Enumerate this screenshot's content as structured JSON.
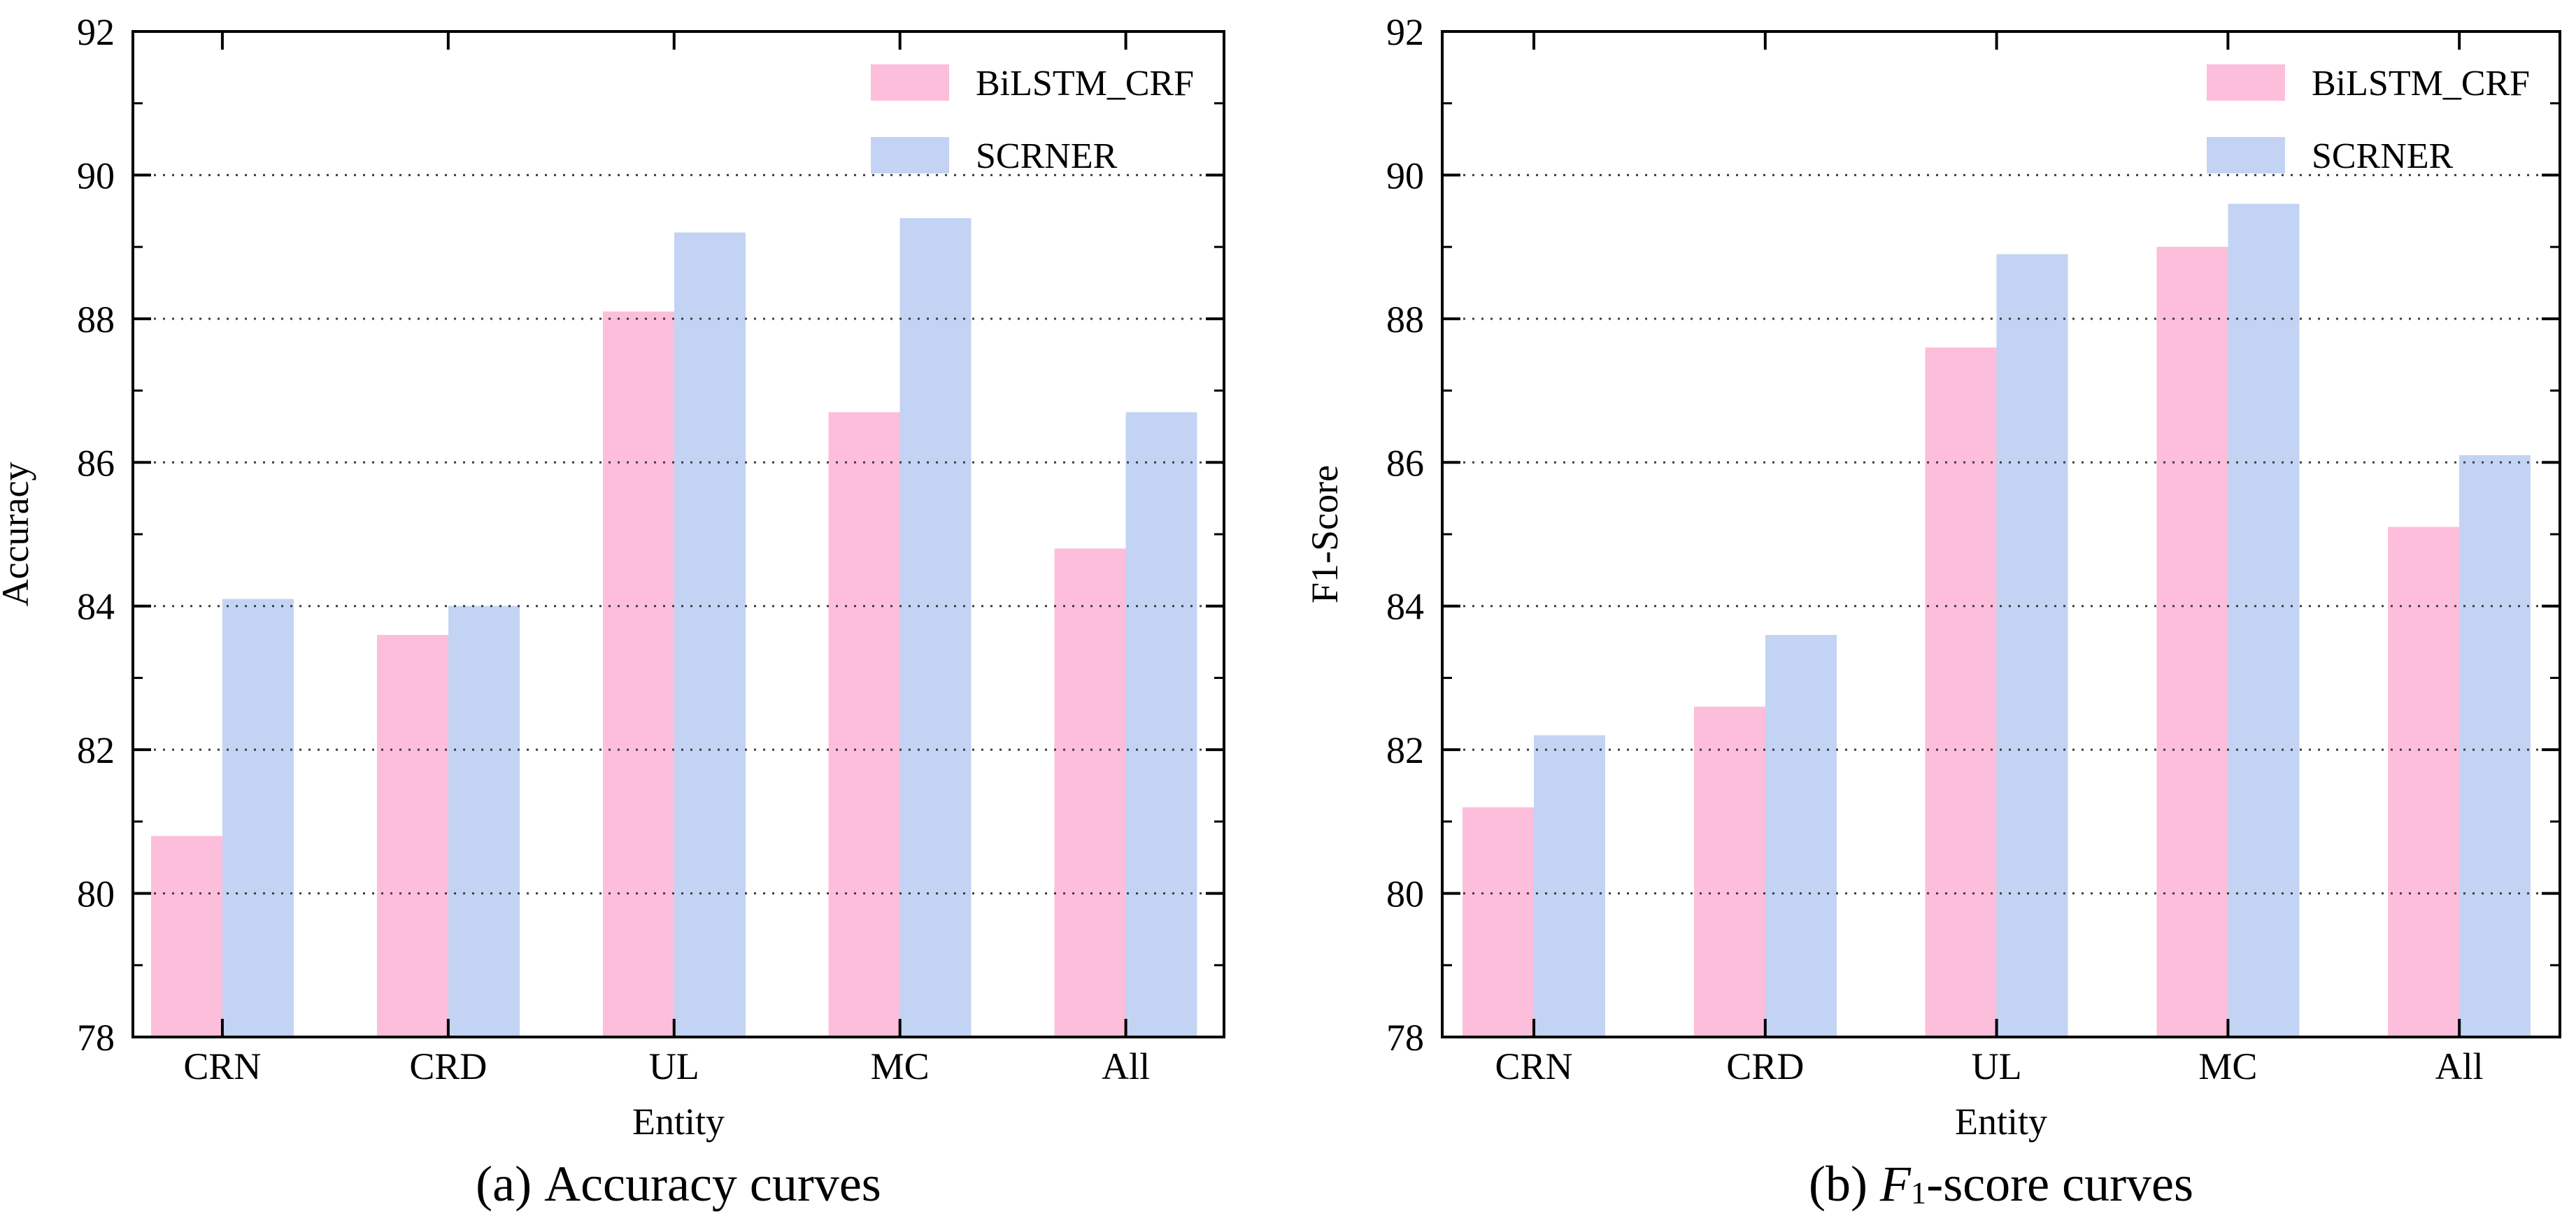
{
  "figure": {
    "background": "#ffffff",
    "axis_color": "#000000",
    "grid_color": "#3d3d3d",
    "text_color": "#000000"
  },
  "legend": {
    "position": "top-right",
    "items": [
      {
        "label": "BiLSTM_CRF",
        "color": "#fcbedb"
      },
      {
        "label": "SCRNER",
        "color": "#c3d3f3"
      }
    ]
  },
  "chart_data": [
    {
      "type": "bar",
      "panel": "a",
      "caption": {
        "pre": "(a) ",
        "f": "",
        "sub": "",
        "rest": "Accuracy curves"
      },
      "xlabel": "Entity",
      "ylabel": "Accuracy",
      "categories": [
        "CRN",
        "CRD",
        "UL",
        "MC",
        "All"
      ],
      "series": [
        {
          "name": "BiLSTM_CRF",
          "color": "#fcbedb",
          "values": [
            80.8,
            83.6,
            88.1,
            86.7,
            84.8
          ]
        },
        {
          "name": "SCRNER",
          "color": "#c3d3f3",
          "values": [
            84.1,
            84.0,
            89.2,
            89.4,
            86.7
          ]
        }
      ],
      "ylim": [
        78,
        92
      ],
      "yticks": [
        78,
        80,
        82,
        84,
        86,
        88,
        90,
        92
      ],
      "grid": "horizontal-dotted",
      "legend_position": "top-right"
    },
    {
      "type": "bar",
      "panel": "b",
      "caption": {
        "pre": "(b) ",
        "f": "F",
        "sub": "1",
        "rest": "-score curves"
      },
      "xlabel": "Entity",
      "ylabel": "F1-Score",
      "categories": [
        "CRN",
        "CRD",
        "UL",
        "MC",
        "All"
      ],
      "series": [
        {
          "name": "BiLSTM_CRF",
          "color": "#fcbedb",
          "values": [
            81.2,
            82.6,
            87.6,
            89.0,
            85.1
          ]
        },
        {
          "name": "SCRNER",
          "color": "#c3d3f3",
          "values": [
            82.2,
            83.6,
            88.9,
            89.6,
            86.1
          ]
        }
      ],
      "ylim": [
        78,
        92
      ],
      "yticks": [
        78,
        80,
        82,
        84,
        86,
        88,
        90,
        92
      ],
      "grid": "horizontal-dotted",
      "legend_position": "top-right"
    }
  ]
}
